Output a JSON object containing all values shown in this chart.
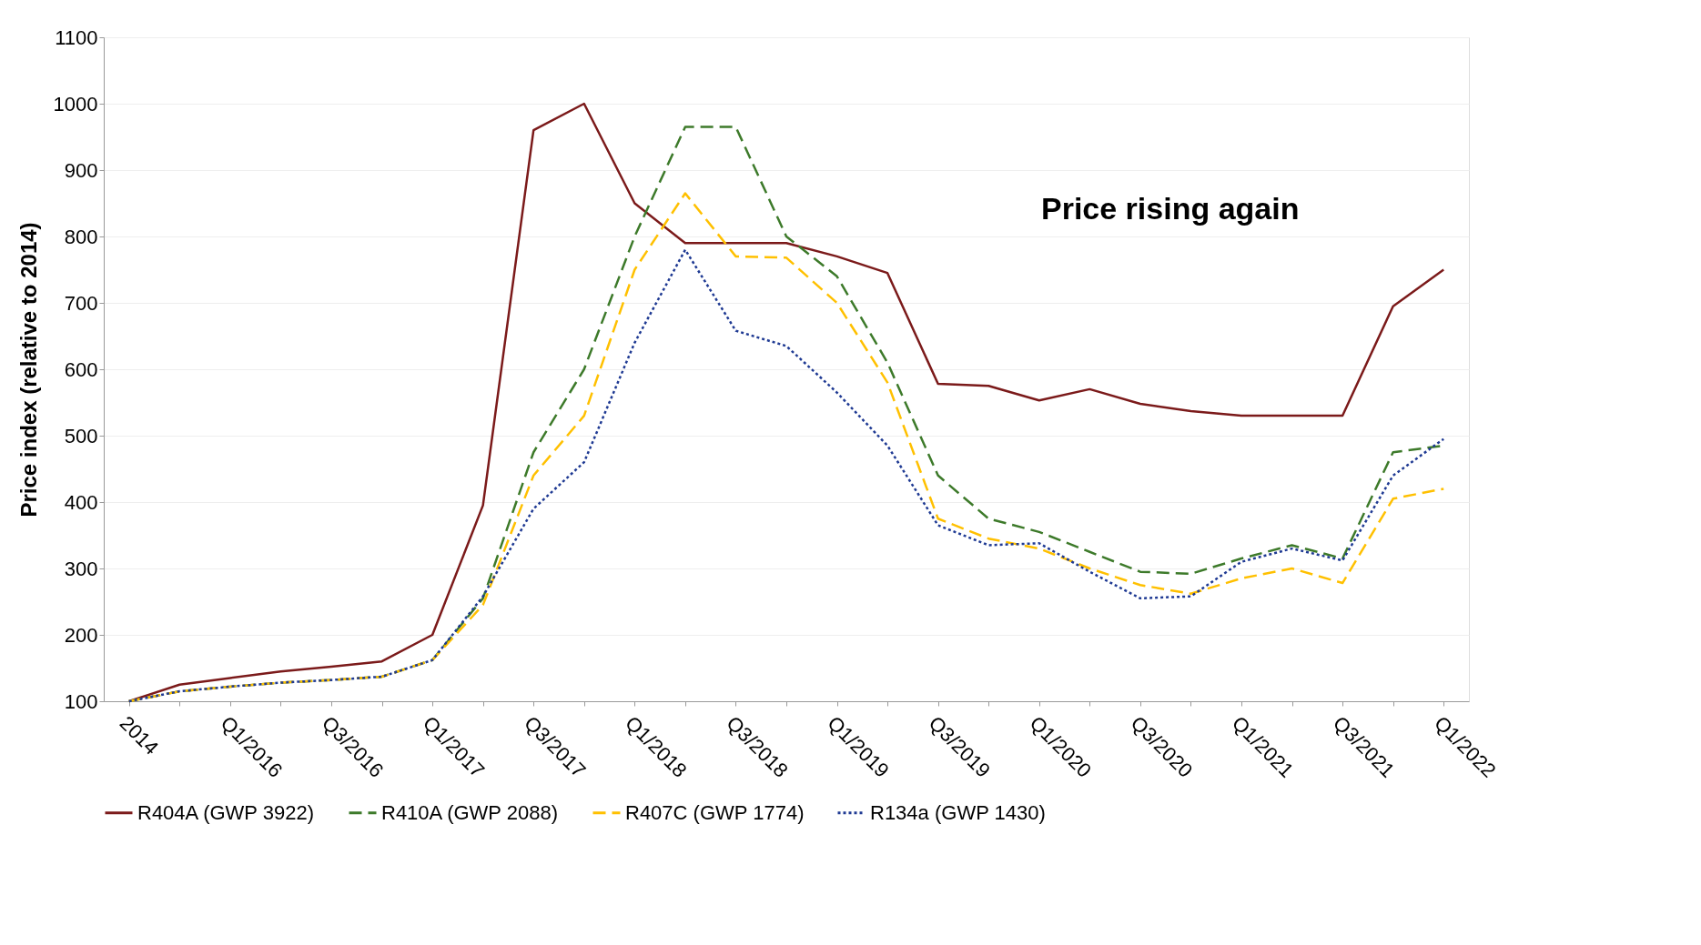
{
  "chart_data": {
    "type": "line",
    "ylabel": "Price index (relative to 2014)",
    "categories": [
      "2014",
      null,
      "Q1/2016",
      null,
      "Q3/2016",
      null,
      "Q1/2017",
      null,
      "Q3/2017",
      null,
      "Q1/2018",
      null,
      "Q3/2018",
      null,
      "Q1/2019",
      null,
      "Q3/2019",
      null,
      "Q1/2020",
      null,
      "Q3/2020",
      null,
      "Q1/2021",
      null,
      "Q3/2021",
      null,
      "Q1/2022"
    ],
    "series": [
      {
        "name": "R404A (GWP 3922)",
        "color": "#7b1a1a",
        "line_style": "solid",
        "values": [
          100,
          125,
          135,
          145,
          152,
          160,
          200,
          395,
          960,
          1000,
          850,
          790,
          790,
          790,
          770,
          745,
          578,
          575,
          553,
          570,
          548,
          537,
          530,
          530,
          530,
          695,
          750
        ]
      },
      {
        "name": "R410A (GWP 2088)",
        "color": "#3d7a2a",
        "line_style": "dashed",
        "values": [
          100,
          115,
          122,
          128,
          132,
          137,
          162,
          255,
          475,
          600,
          800,
          965,
          965,
          800,
          740,
          610,
          440,
          375,
          355,
          325,
          295,
          292,
          315,
          335,
          315,
          475,
          485
        ]
      },
      {
        "name": "R407C (GWP 1774)",
        "color": "#ffc000",
        "line_style": "dashed",
        "values": [
          100,
          115,
          122,
          128,
          132,
          137,
          162,
          245,
          440,
          530,
          750,
          865,
          770,
          768,
          700,
          580,
          375,
          345,
          330,
          300,
          275,
          262,
          285,
          300,
          278,
          405,
          420
        ]
      },
      {
        "name": "R134a (GWP 1430)",
        "color": "#1f3a93",
        "line_style": "dotted",
        "values": [
          100,
          115,
          122,
          128,
          132,
          137,
          162,
          258,
          390,
          460,
          640,
          780,
          658,
          635,
          565,
          485,
          365,
          335,
          338,
          295,
          255,
          258,
          310,
          330,
          312,
          440,
          495
        ]
      }
    ],
    "ylim": [
      100,
      1100
    ],
    "yticks": [
      100,
      200,
      300,
      400,
      500,
      600,
      700,
      800,
      900,
      1000,
      1100
    ],
    "grid": "y",
    "legend": "bottom",
    "annotations": [
      "Price rising again"
    ]
  }
}
